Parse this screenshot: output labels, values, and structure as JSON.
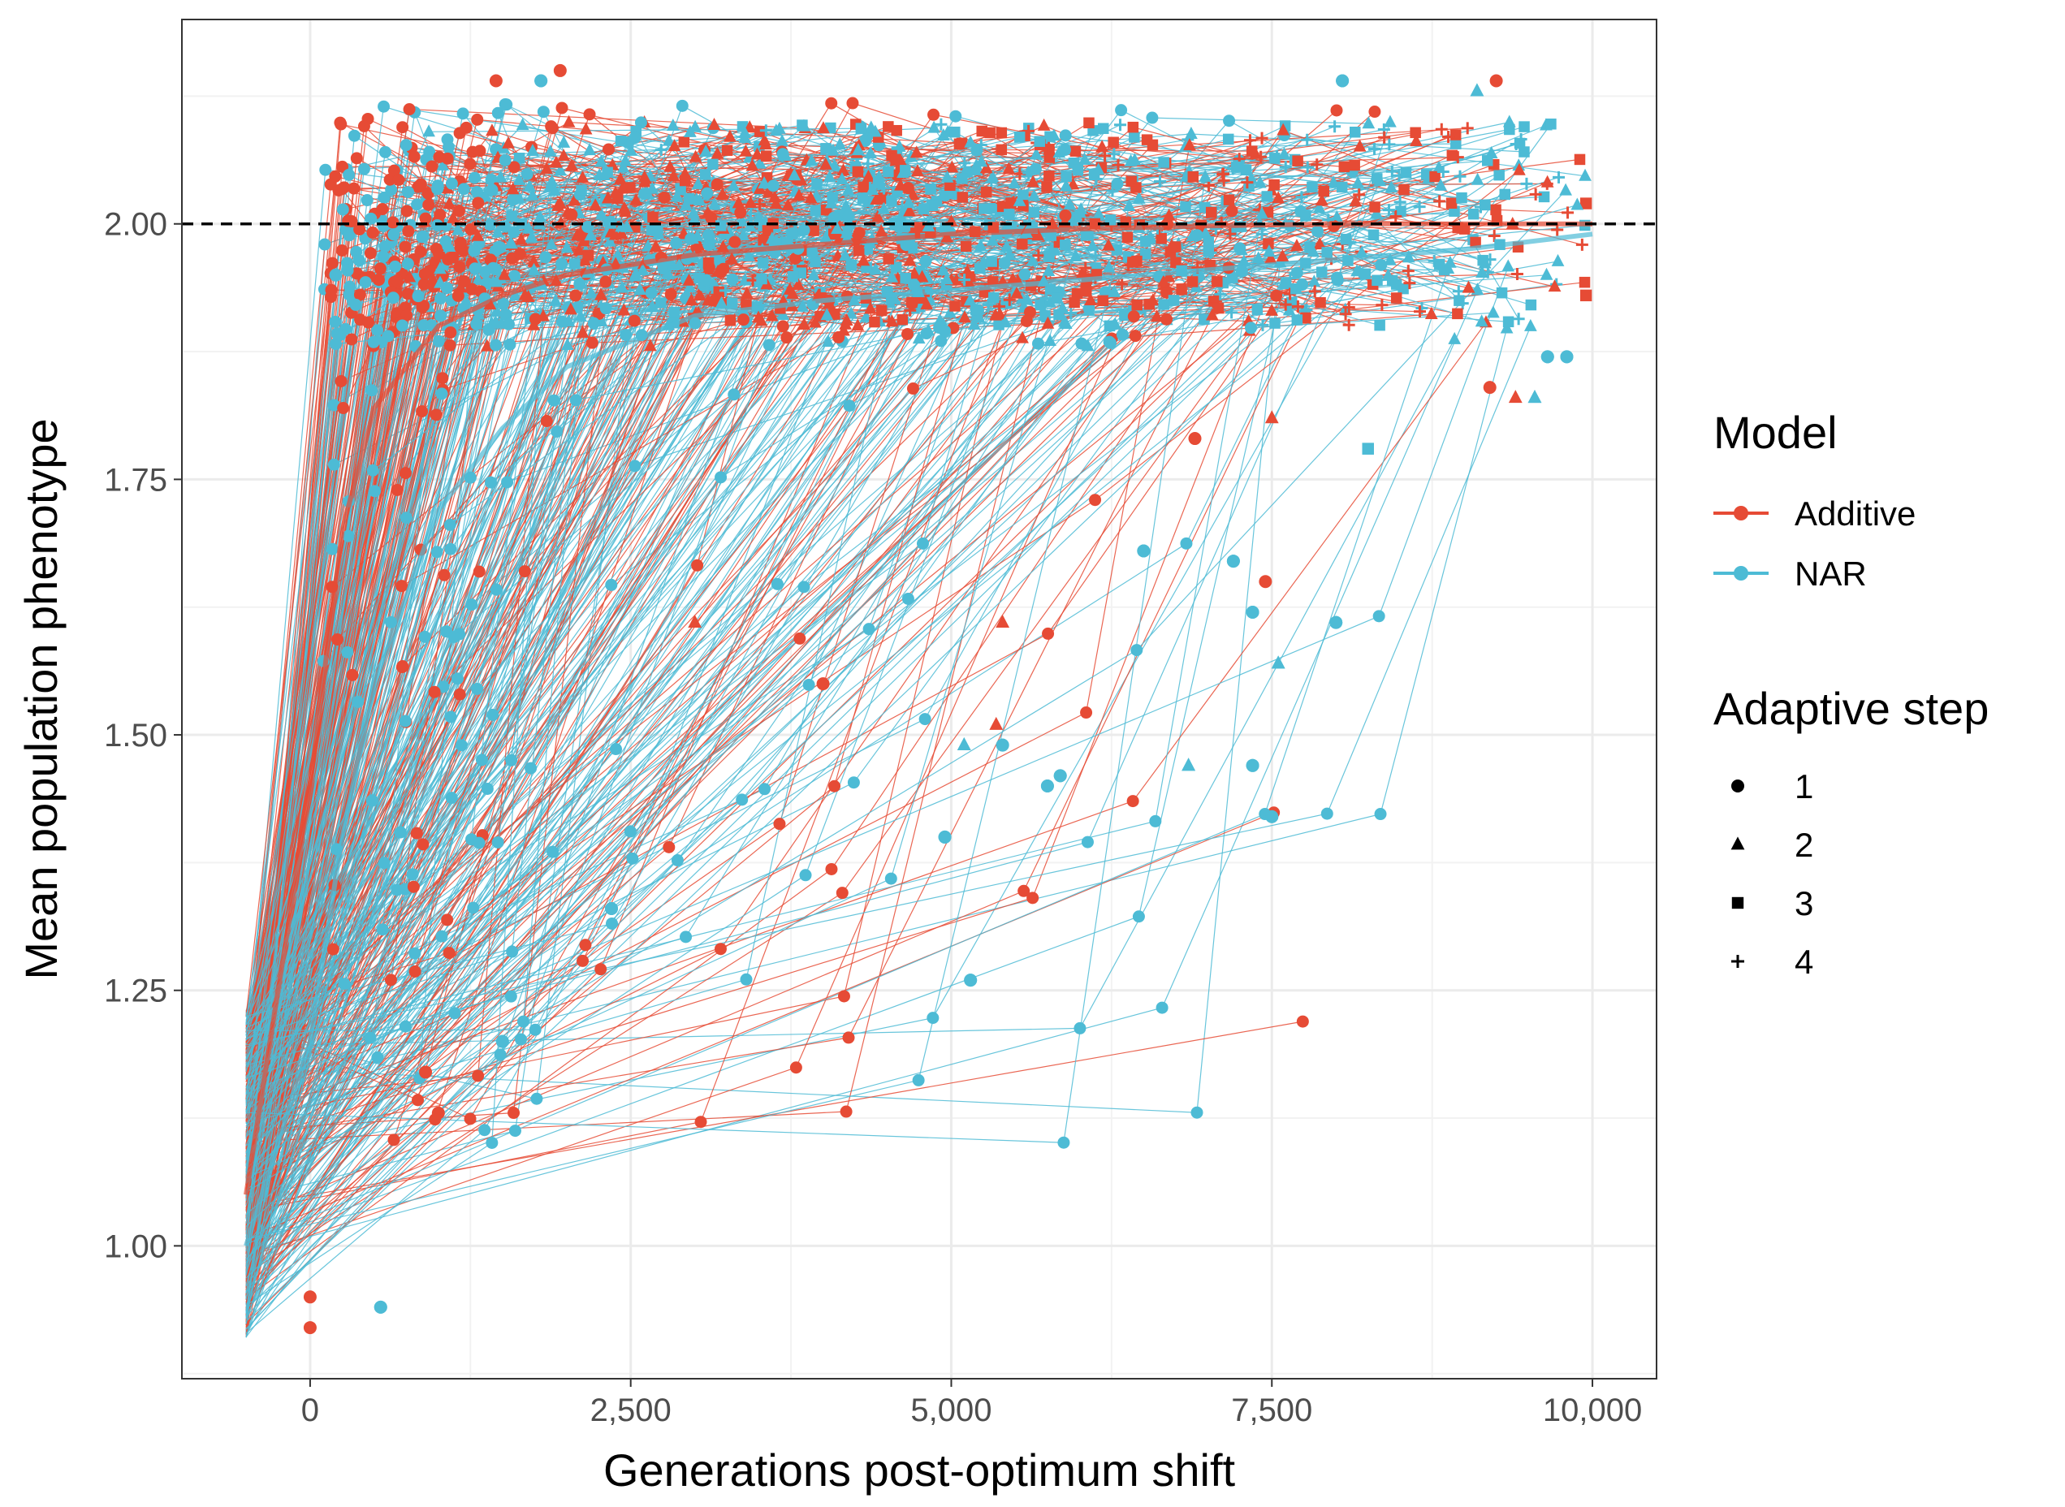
{
  "chart_data": {
    "type": "scatter",
    "xlabel": "Generations post-optimum shift",
    "ylabel": "Mean population phenotype",
    "xlim": [
      -1000,
      10500
    ],
    "ylim": [
      0.87,
      2.2
    ],
    "x_ticks": [
      0,
      2500,
      5000,
      7500,
      10000
    ],
    "x_tick_labels": [
      "0",
      "2,500",
      "5,000",
      "7,500",
      "10,000"
    ],
    "y_ticks": [
      1.0,
      1.25,
      1.5,
      1.75,
      2.0
    ],
    "y_tick_labels": [
      "1.00",
      "1.25",
      "1.50",
      "1.75",
      "2.00"
    ],
    "grid": true,
    "reference_line": {
      "y": 2.0,
      "style": "dashed",
      "color": "#000000"
    },
    "legend_position": "right",
    "legend": {
      "color_title": "Model",
      "color_entries": [
        {
          "label": "Additive",
          "color": "#E64B35"
        },
        {
          "label": "NAR",
          "color": "#4DBBD5"
        }
      ],
      "shape_title": "Adaptive step",
      "shape_entries": [
        {
          "label": "1",
          "shape": "circle"
        },
        {
          "label": "2",
          "shape": "triangle"
        },
        {
          "label": "3",
          "shape": "square"
        },
        {
          "label": "4",
          "shape": "plus"
        }
      ]
    },
    "series": [
      {
        "name": "Additive",
        "color": "#E64B35",
        "trend": {
          "x": [
            -500,
            0,
            250,
            500,
            1000,
            1500,
            2000,
            3000,
            4000,
            5000,
            6000,
            7000,
            8000,
            9000,
            10000
          ],
          "y": [
            1.05,
            1.45,
            1.7,
            1.82,
            1.9,
            1.93,
            1.95,
            1.97,
            1.98,
            1.99,
            1.995,
            1.998,
            2.0,
            2.0,
            2.0
          ]
        },
        "highlight_points": [
          {
            "x": 0,
            "y": 0.95,
            "step": 1
          },
          {
            "x": 0,
            "y": 0.92,
            "step": 1
          },
          {
            "x": 1450,
            "y": 2.14,
            "step": 1
          },
          {
            "x": 1950,
            "y": 2.15,
            "step": 1
          },
          {
            "x": 9250,
            "y": 2.14,
            "step": 1
          },
          {
            "x": 9950,
            "y": 2.02,
            "step": 3
          },
          {
            "x": 9950,
            "y": 1.93,
            "step": 3
          },
          {
            "x": 9200,
            "y": 1.84,
            "step": 1
          },
          {
            "x": 9400,
            "y": 1.83,
            "step": 2
          },
          {
            "x": 7450,
            "y": 1.65,
            "step": 1
          },
          {
            "x": 5400,
            "y": 1.61,
            "step": 2
          },
          {
            "x": 5350,
            "y": 1.51,
            "step": 2
          },
          {
            "x": 900,
            "y": 1.17,
            "step": 1
          },
          {
            "x": 1000,
            "y": 1.13,
            "step": 1
          },
          {
            "x": 3000,
            "y": 1.61,
            "step": 2
          },
          {
            "x": 4000,
            "y": 1.55,
            "step": 1
          },
          {
            "x": 7500,
            "y": 1.81,
            "step": 2
          },
          {
            "x": 6900,
            "y": 1.79,
            "step": 1
          }
        ]
      },
      {
        "name": "NAR",
        "color": "#4DBBD5",
        "trend": {
          "x": [
            -500,
            0,
            250,
            500,
            1000,
            1500,
            2000,
            3000,
            4000,
            5000,
            6000,
            7000,
            8000,
            9000,
            10000
          ],
          "y": [
            1.0,
            1.2,
            1.4,
            1.55,
            1.72,
            1.8,
            1.86,
            1.91,
            1.925,
            1.935,
            1.945,
            1.955,
            1.965,
            1.975,
            1.99
          ]
        },
        "highlight_points": [
          {
            "x": 550,
            "y": 0.94,
            "step": 1
          },
          {
            "x": 200,
            "y": 1.95,
            "step": 1
          },
          {
            "x": 1800,
            "y": 2.14,
            "step": 1
          },
          {
            "x": 8050,
            "y": 2.14,
            "step": 1
          },
          {
            "x": 9100,
            "y": 2.13,
            "step": 2
          },
          {
            "x": 5150,
            "y": 1.26,
            "step": 1
          },
          {
            "x": 7500,
            "y": 1.42,
            "step": 1
          },
          {
            "x": 7350,
            "y": 1.47,
            "step": 1
          },
          {
            "x": 6850,
            "y": 1.47,
            "step": 2
          },
          {
            "x": 5750,
            "y": 1.45,
            "step": 1
          },
          {
            "x": 5850,
            "y": 1.46,
            "step": 1
          },
          {
            "x": 4950,
            "y": 1.4,
            "step": 1
          },
          {
            "x": 7550,
            "y": 1.57,
            "step": 2
          },
          {
            "x": 8000,
            "y": 1.61,
            "step": 1
          },
          {
            "x": 7350,
            "y": 1.62,
            "step": 1
          },
          {
            "x": 9550,
            "y": 1.83,
            "step": 2
          },
          {
            "x": 9650,
            "y": 1.87,
            "step": 1
          },
          {
            "x": 9800,
            "y": 1.87,
            "step": 1
          },
          {
            "x": 8250,
            "y": 1.78,
            "step": 3
          },
          {
            "x": 6500,
            "y": 1.68,
            "step": 1
          },
          {
            "x": 7200,
            "y": 1.67,
            "step": 1
          },
          {
            "x": 5100,
            "y": 1.49,
            "step": 2
          },
          {
            "x": 5400,
            "y": 1.49,
            "step": 1
          },
          {
            "x": 2350,
            "y": 1.33,
            "step": 1
          },
          {
            "x": 1500,
            "y": 1.2,
            "step": 1
          }
        ]
      }
    ]
  }
}
